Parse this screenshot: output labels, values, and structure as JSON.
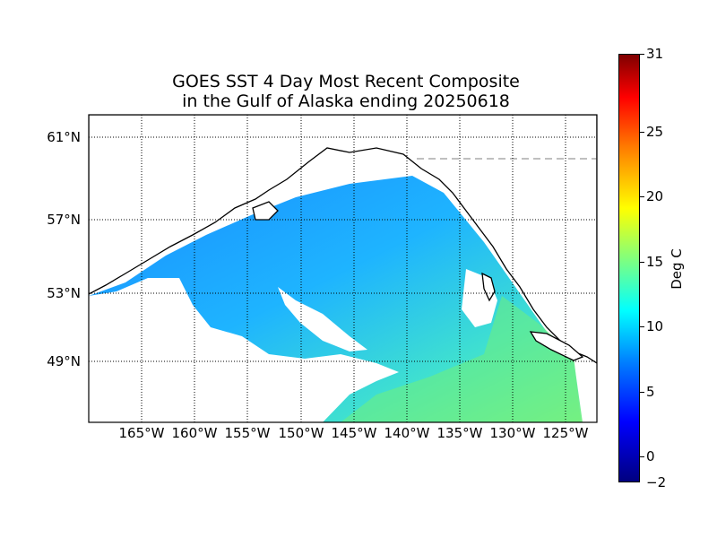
{
  "title_line1": "GOES SST 4 Day Most Recent Composite",
  "title_line2": "in the Gulf of Alaska ending 20250618",
  "lat_labels": [
    "61°N",
    "57°N",
    "53°N",
    "49°N"
  ],
  "lon_labels": [
    "165°W",
    "160°W",
    "155°W",
    "150°W",
    "145°W",
    "140°W",
    "135°W",
    "130°W",
    "125°W"
  ],
  "colorbar": {
    "label": "Deg C",
    "min": -2,
    "max": 31,
    "ticks": [
      "31",
      "25",
      "20",
      "15",
      "10",
      "5",
      "0",
      "−2"
    ],
    "colormap": "jet"
  },
  "colors": {
    "land_outline": "#000000",
    "no_data": "#ffffff",
    "sst_typical": "#1ea0ff",
    "sst_warm": "#5ff0a0"
  }
}
